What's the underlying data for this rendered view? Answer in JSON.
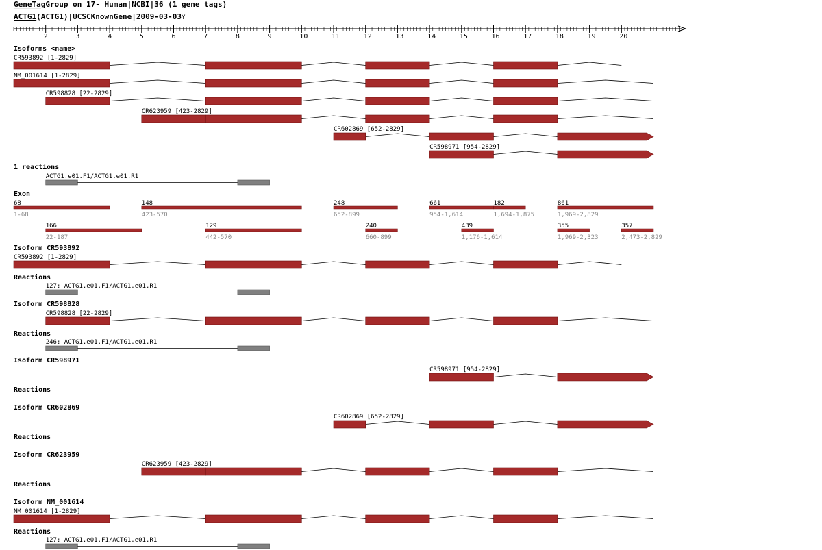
{
  "colors": {
    "exon": "#a52a2a",
    "exon_stroke": "#6e1010",
    "reaction": "#808080",
    "line": "#000000",
    "sub": "#888888",
    "ink": "#000000"
  },
  "header": {
    "title_link": "GeneTag",
    "title_rest": "Group on 17- Human|NCBI|36 (1 gene tags)",
    "gene_link": "ACTG1",
    "gene_rest": "(ACTG1)|UCSCKnownGene|2009-03-03",
    "close_glyph": "Y"
  },
  "ruler": {
    "labels": [
      "2",
      "3",
      "4",
      "5",
      "6",
      "7",
      "8",
      "9",
      "10",
      "11",
      "12",
      "13",
      "14",
      "15",
      "16",
      "17",
      "18",
      "19",
      "20"
    ]
  },
  "sections": {
    "isoforms_title": "Isoforms <name>",
    "reactions_summary_title": "1 reactions",
    "exon_title": "Exon",
    "reactions_title": "Reactions"
  },
  "isoforms": [
    {
      "label": "CR593892 [1-2829]",
      "exons": [
        1,
        4,
        7,
        10,
        12,
        14,
        16,
        18,
        20
      ]
    },
    {
      "label": "NM_001614 [1-2829]",
      "exons": [
        1,
        4,
        7,
        10,
        12,
        14,
        16,
        18,
        21
      ]
    },
    {
      "label": "CR598828 [22-2829]",
      "exons": [
        2,
        4,
        7,
        10,
        12,
        14,
        16,
        18,
        21
      ]
    },
    {
      "label": "CR623959 [423-2829]",
      "exons": [
        5,
        7,
        7,
        10,
        12,
        14,
        16,
        18,
        21
      ]
    },
    {
      "label": "CR602869 [652-2829]",
      "exons": [
        11,
        12,
        14,
        16,
        18,
        21
      ]
    },
    {
      "label": "CR598971 [954-2829]",
      "exons": [
        14,
        16,
        18,
        21
      ]
    }
  ],
  "summary_reaction": {
    "label": "ACTG1.e01.F1/ACTG1.e01.R1"
  },
  "exons": [
    {
      "count": "68",
      "range": "1-68",
      "start": 1,
      "end": 4,
      "row": 0
    },
    {
      "count": "148",
      "range": "423-570",
      "start": 5,
      "end": 10,
      "row": 0
    },
    {
      "count": "248",
      "range": "652-899",
      "start": 11,
      "end": 13,
      "row": 0
    },
    {
      "count": "661",
      "range": "954-1,614",
      "start": 14,
      "end": 16,
      "row": 0
    },
    {
      "count": "182",
      "range": "1,694-1,875",
      "start": 16,
      "end": 17,
      "row": 0
    },
    {
      "count": "861",
      "range": "1,969-2,829",
      "start": 18,
      "end": 21,
      "row": 0
    },
    {
      "count": "166",
      "range": "22-187",
      "start": 2,
      "end": 5,
      "row": 1
    },
    {
      "count": "129",
      "range": "442-570",
      "start": 7,
      "end": 10,
      "row": 1
    },
    {
      "count": "240",
      "range": "660-899",
      "start": 12,
      "end": 13,
      "row": 1
    },
    {
      "count": "439",
      "range": "1,176-1,614",
      "start": 15,
      "end": 16,
      "row": 1
    },
    {
      "count": "355",
      "range": "1,969-2,323",
      "start": 18,
      "end": 19,
      "row": 1
    },
    {
      "count": "357",
      "range": "2,473-2,829",
      "start": 20,
      "end": 21,
      "row": 1
    }
  ],
  "details": [
    {
      "title": "Isoform CR593892",
      "track": "CR593892 [1-2829]",
      "reaction": "127: ACTG1.e01.F1/ACTG1.e01.R1"
    },
    {
      "title": "Isoform CR598828",
      "track": "CR598828 [22-2829]",
      "reaction": "246: ACTG1.e01.F1/ACTG1.e01.R1"
    },
    {
      "title": "Isoform CR598971",
      "track": "CR598971 [954-2829]",
      "reaction": ""
    },
    {
      "title": "Isoform CR602869",
      "track": "CR602869 [652-2829]",
      "reaction": ""
    },
    {
      "title": "Isoform CR623959",
      "track": "CR623959 [423-2829]",
      "reaction": ""
    },
    {
      "title": "Isoform NM_001614",
      "track": "NM_001614 [1-2829]",
      "reaction": "127: ACTG1.e01.F1/ACTG1.e01.R1"
    }
  ]
}
